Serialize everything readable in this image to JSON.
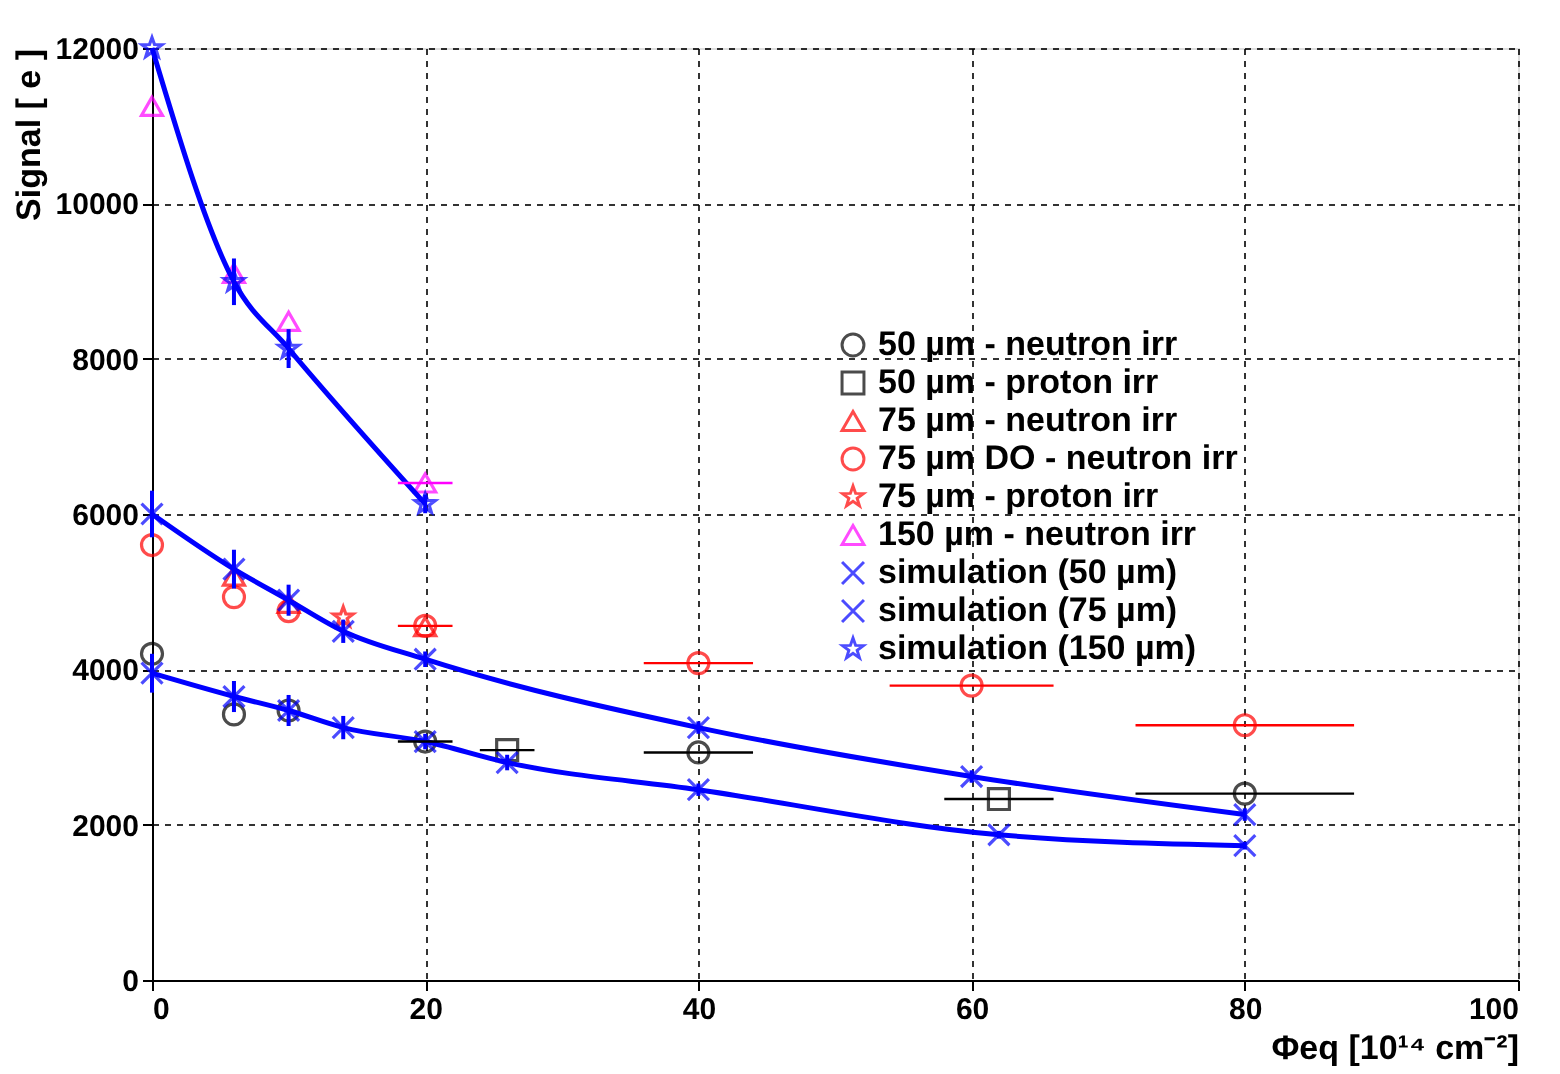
{
  "chart_data": {
    "type": "scatter",
    "xlabel": "Φeq [10¹⁴ cm⁻²]",
    "ylabel": "Signal [ e ]",
    "xlim": [
      0,
      100
    ],
    "xticks": [
      0,
      20,
      40,
      60,
      80,
      100
    ],
    "ylim": [
      0,
      12000
    ],
    "yticks": [
      0,
      2000,
      4000,
      6000,
      8000,
      10000,
      12000
    ],
    "grid": true,
    "legend": "top right",
    "series": [
      {
        "name": "50 µm - neutron irr",
        "type": "scatter",
        "marker": "circle",
        "color": "#000000",
        "x": [
          0,
          6,
          10,
          20,
          40,
          80
        ],
        "values": [
          4200,
          3420,
          3470,
          3070,
          2930,
          2400
        ],
        "xerrors": [
          null,
          null,
          null,
          2,
          4,
          8
        ]
      },
      {
        "name": "50 µm - proton irr",
        "type": "scatter",
        "marker": "square",
        "color": "#000000",
        "x": [
          26,
          62
        ],
        "values": [
          2960,
          2330
        ],
        "xerrors": [
          2,
          4
        ]
      },
      {
        "name": "75 µm - neutron irr",
        "type": "scatter",
        "marker": "triangle",
        "color": "#ff0000",
        "x": [
          6,
          10,
          20
        ],
        "values": [
          5200,
          4850,
          4550
        ]
      },
      {
        "name": "75 µm DO - neutron irr",
        "type": "scatter",
        "marker": "circle",
        "color": "#ff0000",
        "x": [
          0,
          6,
          10,
          20,
          40,
          60,
          80
        ],
        "values": [
          5600,
          4930,
          4750,
          4560,
          4080,
          3790,
          3280
        ],
        "xerrors": [
          null,
          null,
          null,
          2,
          4,
          6,
          8
        ]
      },
      {
        "name": "75 µm - proton irr",
        "type": "scatter",
        "marker": "star",
        "color": "#ff0000",
        "x": [
          14
        ],
        "values": [
          4670
        ]
      },
      {
        "name": "150 µm - neutron irr",
        "type": "scatter",
        "marker": "triangle",
        "color": "#ff00ff",
        "x": [
          0,
          6,
          10,
          20
        ],
        "values": [
          11250,
          9100,
          8480,
          6400
        ],
        "xerrors": [
          null,
          null,
          null,
          2
        ]
      },
      {
        "name": "simulation (50  µm)",
        "type": "line",
        "marker": "cross",
        "line_style": "solid",
        "color": "#0000ff",
        "x": [
          0,
          6,
          10,
          14,
          20,
          26,
          40,
          62,
          80
        ],
        "values": [
          3950,
          3650,
          3470,
          3250,
          3070,
          2800,
          2450,
          1870,
          1730
        ],
        "errors": [
          250,
          200,
          200,
          150,
          100,
          100,
          80,
          50,
          50
        ]
      },
      {
        "name": "simulation (75  µm)",
        "type": "line",
        "marker": "cross",
        "line_style": "solid",
        "color": "#0000ff",
        "x": [
          0,
          6,
          10,
          14,
          20,
          40,
          60,
          80
        ],
        "values": [
          6000,
          5290,
          4890,
          4490,
          4130,
          3250,
          2620,
          2130
        ],
        "errors": [
          300,
          250,
          200,
          150,
          100,
          80,
          80,
          80
        ]
      },
      {
        "name": "simulation (150  µm)",
        "type": "line",
        "marker": "star",
        "line_style": "solid",
        "color": "#0000ff",
        "x": [
          0,
          6,
          10,
          20
        ],
        "values": [
          12000,
          8990,
          8130,
          6130
        ],
        "errors": [
          0,
          300,
          250,
          120
        ]
      }
    ]
  }
}
